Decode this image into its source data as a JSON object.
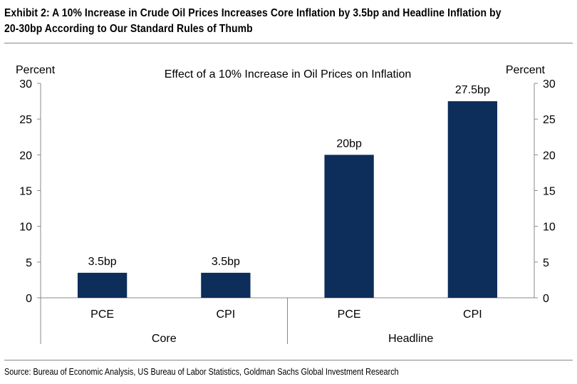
{
  "exhibit_title": "Exhibit 2: A 10% Increase in Crude Oil Prices Increases Core Inflation by 3.5bp and Headline Inflation by 20-30bp According to Our Standard Rules of Thumb",
  "source": "Source: Bureau of Economic Analysis, US Bureau of Labor Statistics, Goldman Sachs Global Investment Research",
  "chart_data": {
    "type": "bar",
    "title": "Effect of a 10% Increase in Oil Prices on Inflation",
    "ylabel_left": "Percent",
    "ylabel_right": "Percent",
    "ylim": [
      0,
      30
    ],
    "yticks": [
      0,
      5,
      10,
      15,
      20,
      25,
      30
    ],
    "categories": [
      "PCE",
      "CPI",
      "PCE",
      "CPI"
    ],
    "groups": [
      {
        "label": "Core",
        "categories": [
          0,
          1
        ]
      },
      {
        "label": "Headline",
        "categories": [
          2,
          3
        ]
      }
    ],
    "values": [
      3.5,
      3.5,
      20,
      27.5
    ],
    "data_labels": [
      "3.5bp",
      "3.5bp",
      "20bp",
      "27.5bp"
    ],
    "bar_color": "#0d2d5a",
    "grid": false,
    "legend": "none"
  }
}
